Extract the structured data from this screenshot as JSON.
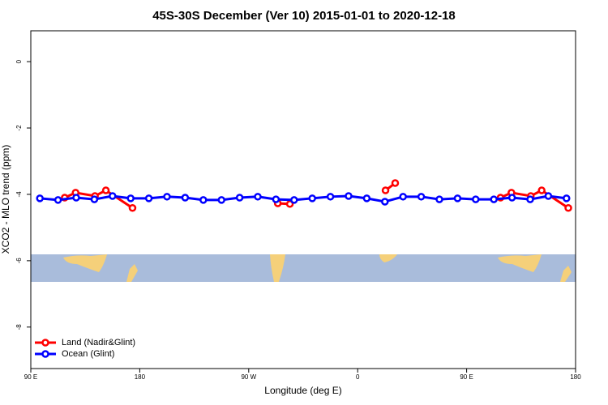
{
  "chart_data": {
    "type": "line",
    "title": "45S-30S December (Ver 10)   2015-01-01 to 2020-12-18",
    "x_label": "Longitude (deg E)",
    "y_label": "XCO2 - MLO trend (ppm)",
    "xlim": [
      90,
      540
    ],
    "xticks": [
      {
        "value": 90,
        "label": "90 E"
      },
      180,
      {
        "value": 270,
        "label": "90 W"
      },
      {
        "value": 360,
        "label": "0"
      },
      {
        "value": 450,
        "label": "90 E"
      },
      {
        "value": 540,
        "label": "180"
      }
    ],
    "ylim": [
      -9.25,
      0.93
    ],
    "yticks": [
      0,
      -2,
      -4,
      -6,
      -8
    ],
    "legend": "bottom-left",
    "series": [
      {
        "name": "Land (Nadir&Glint)",
        "color": "#ff0000",
        "x": [
          118,
          127,
          143,
          152,
          174,
          null,
          294,
          304,
          null,
          383,
          391,
          null,
          478,
          487,
          503,
          512,
          534
        ],
        "values": [
          -4.1,
          -3.95,
          -4.05,
          -3.88,
          -4.41,
          null,
          -4.27,
          -4.29,
          null,
          -3.88,
          -3.66,
          null,
          -4.1,
          -3.95,
          -4.05,
          -3.88,
          -4.41
        ]
      },
      {
        "name": "Ocean (Glint)",
        "color": "#0000ff",
        "x": [
          97.5,
          112.5,
          127.5,
          142.5,
          157.5,
          172.5,
          187.5,
          202.5,
          217.5,
          232.5,
          247.5,
          262.5,
          277.5,
          292.5,
          307.5,
          322.5,
          337.5,
          352.5,
          367.5,
          382.5,
          397.5,
          412.5,
          427.5,
          442.5,
          457.5,
          472.5,
          487.5,
          502.5,
          517.5,
          532.5
        ],
        "values": [
          -4.12,
          -4.17,
          -4.1,
          -4.15,
          -4.05,
          -4.12,
          -4.12,
          -4.07,
          -4.1,
          -4.17,
          -4.17,
          -4.1,
          -4.07,
          -4.15,
          -4.17,
          -4.12,
          -4.07,
          -4.05,
          -4.12,
          -4.22,
          -4.07,
          -4.07,
          -4.15,
          -4.12,
          -4.15,
          -4.15,
          -4.1,
          -4.15,
          -4.05,
          -4.12
        ]
      }
    ]
  }
}
